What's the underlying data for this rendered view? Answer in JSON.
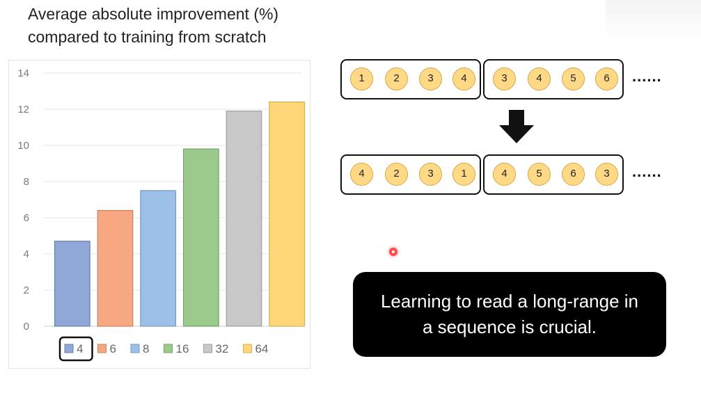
{
  "title_lines": [
    "Average absolute improvement (%)",
    "compared to training from scratch"
  ],
  "chart_data": {
    "type": "bar",
    "title": "Average absolute improvement (%) compared to training from scratch",
    "categories": [
      "4",
      "6",
      "8",
      "16",
      "32",
      "64"
    ],
    "values": [
      4.7,
      6.4,
      7.5,
      9.8,
      11.9,
      12.4
    ],
    "colors": [
      "#8fa8d8",
      "#f5a882",
      "#9cc0e8",
      "#9cc98c",
      "#c8c8c8",
      "#ffd67a"
    ],
    "legend": [
      "4",
      "6",
      "8",
      "16",
      "32",
      "64"
    ],
    "highlighted_legend": "4",
    "ylim": [
      0,
      14
    ],
    "yticks": [
      0,
      2,
      4,
      6,
      8,
      10,
      12,
      14
    ],
    "grid": true,
    "legend_position": "bottom",
    "xlabel": "",
    "ylabel": ""
  },
  "sequence_diagram": {
    "rows": [
      {
        "groups": [
          [
            "1",
            "2",
            "3",
            "4"
          ],
          [
            "3",
            "4",
            "5",
            "6"
          ]
        ],
        "ellipsis": "......"
      },
      {
        "groups": [
          [
            "4",
            "2",
            "3",
            "1"
          ],
          [
            "4",
            "5",
            "6",
            "3"
          ]
        ],
        "ellipsis": "......"
      }
    ]
  },
  "caption_lines": [
    "Learning to read a long-range in",
    "a sequence is crucial."
  ],
  "colors": {
    "token_fill": "#ffd986",
    "caption_bg": "#000000",
    "caption_text": "#ffffff",
    "cursor": "#ff4b4b"
  }
}
